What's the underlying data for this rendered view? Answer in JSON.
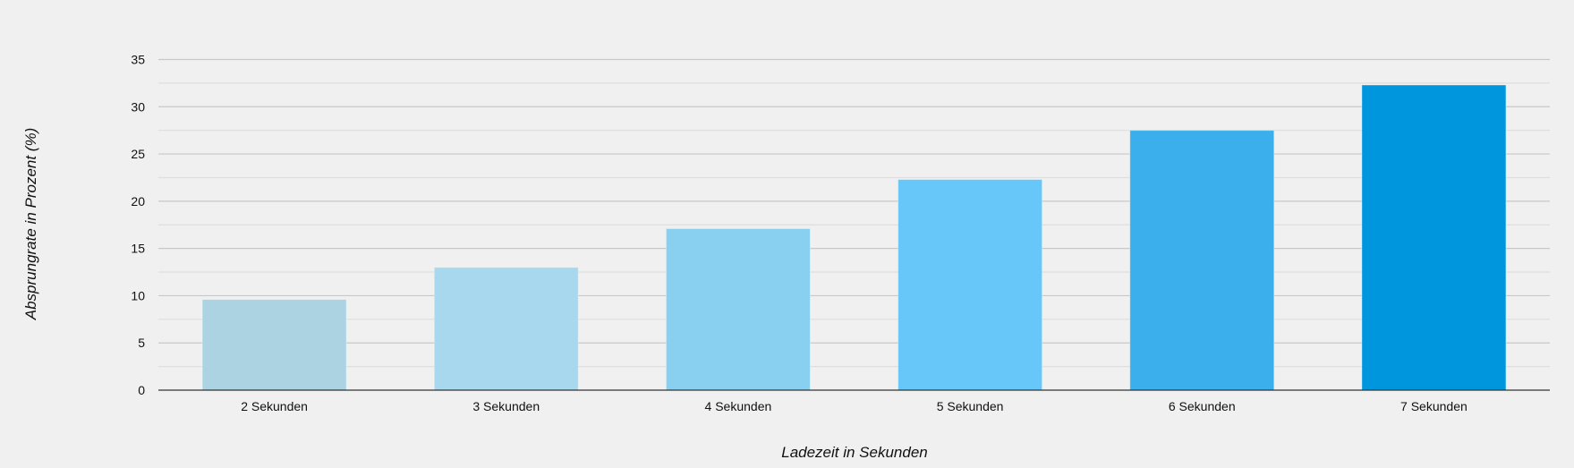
{
  "chart_data": {
    "type": "bar",
    "title": "",
    "xlabel": "Ladezeit in Sekunden",
    "ylabel": "Absprungrate in Prozent (%)",
    "categories": [
      "2 Sekunden",
      "3 Sekunden",
      "4 Sekunden",
      "5 Sekunden",
      "6 Sekunden",
      "7 Sekunden"
    ],
    "values": [
      9.6,
      13.0,
      17.1,
      22.3,
      27.5,
      32.3
    ],
    "colors": [
      "#abd3e2",
      "#a7d8ed",
      "#88cff0",
      "#67c7f8",
      "#3aafec",
      "#0096de"
    ],
    "ylim": [
      0,
      35
    ],
    "yticks": [
      0,
      5,
      10,
      15,
      20,
      25,
      30,
      35
    ],
    "grid": true,
    "minor_grid_step": 2.5,
    "legend": null
  }
}
